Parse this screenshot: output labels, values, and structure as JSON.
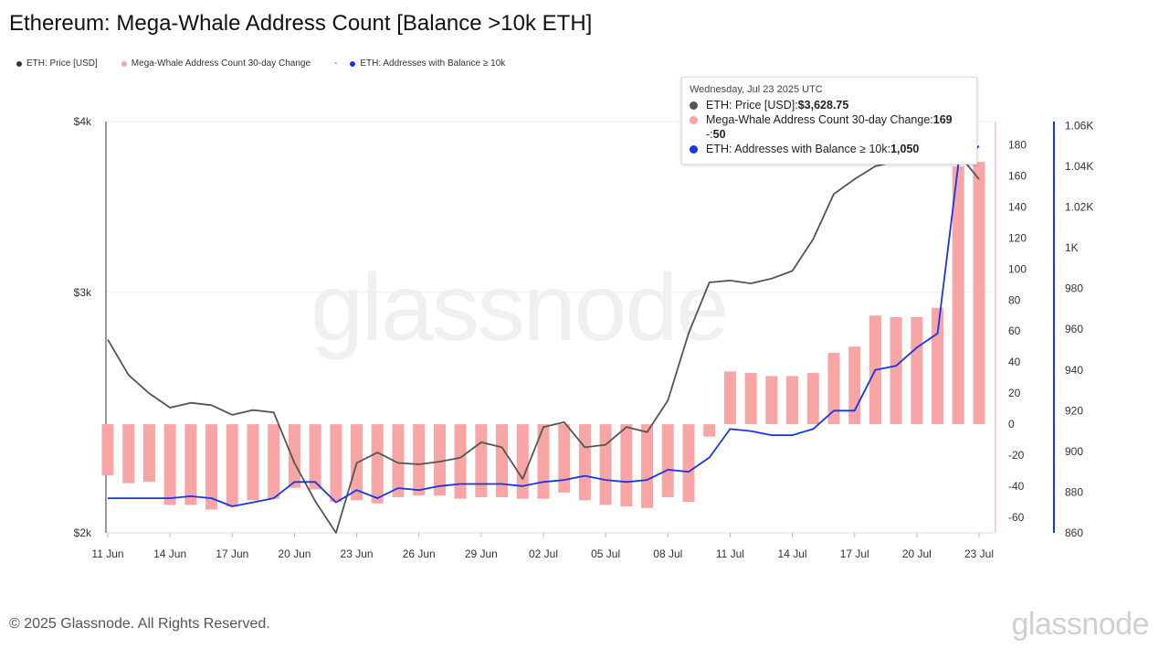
{
  "title": "Ethereum: Mega-Whale Address Count [Balance >10k ETH]",
  "legend": {
    "price": "ETH: Price [USD]",
    "change": "Mega-Whale Address Count 30-day Change",
    "separator": "-",
    "addresses": "ETH: Addresses with Balance ≥ 10k"
  },
  "colors": {
    "price": "#555555",
    "change": "#f8a5a5",
    "addresses": "#1537e8",
    "price_dot": "#333333"
  },
  "tooltip": {
    "date": "Wednesday, Jul 23 2025 UTC",
    "price_label": "ETH: Price [USD]: ",
    "price_value": "$3,628.75",
    "change_label": "Mega-Whale Address Count 30-day Change: ",
    "change_value": "169",
    "change_label2": "-: ",
    "change_value2": "50",
    "addr_label": "ETH: Addresses with Balance ≥ 10k: ",
    "addr_value": "1,050"
  },
  "footer": "© 2025 Glassnode. All Rights Reserved.",
  "brand": "glassnode",
  "watermark": "glassnode",
  "chart_data": {
    "type": "line",
    "x": [
      "11 Jun",
      "12 Jun",
      "13 Jun",
      "14 Jun",
      "15 Jun",
      "16 Jun",
      "17 Jun",
      "18 Jun",
      "19 Jun",
      "20 Jun",
      "21 Jun",
      "22 Jun",
      "23 Jun",
      "24 Jun",
      "25 Jun",
      "26 Jun",
      "27 Jun",
      "28 Jun",
      "29 Jun",
      "30 Jun",
      "01 Jul",
      "02 Jul",
      "03 Jul",
      "04 Jul",
      "05 Jul",
      "06 Jul",
      "07 Jul",
      "08 Jul",
      "09 Jul",
      "10 Jul",
      "11 Jul",
      "12 Jul",
      "13 Jul",
      "14 Jul",
      "15 Jul",
      "16 Jul",
      "17 Jul",
      "18 Jul",
      "19 Jul",
      "20 Jul",
      "21 Jul",
      "22 Jul",
      "23 Jul"
    ],
    "xticks": [
      "11 Jun",
      "14 Jun",
      "17 Jun",
      "20 Jun",
      "23 Jun",
      "26 Jun",
      "29 Jun",
      "02 Jul",
      "05 Jul",
      "08 Jul",
      "11 Jul",
      "14 Jul",
      "17 Jul",
      "20 Jul",
      "23 Jul"
    ],
    "series": [
      {
        "name": "ETH: Price [USD]",
        "axis": "left",
        "values": [
          2770,
          2610,
          2530,
          2470,
          2490,
          2480,
          2440,
          2460,
          2450,
          2250,
          2110,
          2000,
          2250,
          2290,
          2250,
          2245,
          2255,
          2270,
          2330,
          2310,
          2190,
          2390,
          2410,
          2310,
          2320,
          2390,
          2370,
          2500,
          2800,
          3050,
          3060,
          3045,
          3070,
          3110,
          3280,
          3540,
          3630,
          3710,
          3740,
          3890,
          3920,
          3790,
          3628.75
        ]
      },
      {
        "name": "Mega-Whale Address Count 30-day Change",
        "axis": "right",
        "type": "bar",
        "values": [
          -33,
          -38,
          -37,
          -52,
          -52,
          -55,
          -53,
          -49,
          -48,
          -41,
          -42,
          -50,
          -49,
          -51,
          -47,
          -46,
          -46,
          -48,
          -47,
          -47,
          -48,
          -48,
          -44,
          -49,
          -52,
          -53,
          -54,
          -47,
          -50,
          -8,
          34,
          33,
          31,
          31,
          33,
          46,
          50,
          70,
          69,
          69,
          75,
          166,
          169
        ]
      },
      {
        "name": "ETH: Addresses with Balance ≥ 10k",
        "axis": "right2",
        "values": [
          877,
          877,
          877,
          877,
          878,
          877,
          873,
          875,
          877,
          885,
          885,
          875,
          881,
          877,
          882,
          881,
          883,
          884,
          884,
          884,
          883,
          885,
          886,
          888,
          886,
          885,
          886,
          891,
          890,
          897,
          911,
          910,
          908,
          908,
          911,
          920,
          920,
          940,
          942,
          951,
          958,
          1041,
          1050
        ]
      }
    ],
    "y_left": {
      "ticks": [
        "$2k",
        "$3k",
        "$4k"
      ],
      "values": [
        2000,
        3000,
        4000
      ],
      "scale": "log",
      "ylim": [
        2000,
        4000
      ]
    },
    "y_right": {
      "ticks": [
        -60,
        -40,
        -20,
        0,
        20,
        40,
        60,
        80,
        100,
        120,
        140,
        160,
        180
      ],
      "ylim": [
        -70,
        195
      ]
    },
    "y_right2": {
      "ticks": [
        "860",
        "880",
        "900",
        "920",
        "940",
        "960",
        "980",
        "1K",
        "1.02K",
        "1.04K",
        "1.06K"
      ],
      "values": [
        860,
        880,
        900,
        920,
        940,
        960,
        980,
        1000,
        1020,
        1040,
        1060
      ],
      "ylim": [
        860,
        1062
      ]
    },
    "grid": true,
    "legend_position": "top-left"
  }
}
